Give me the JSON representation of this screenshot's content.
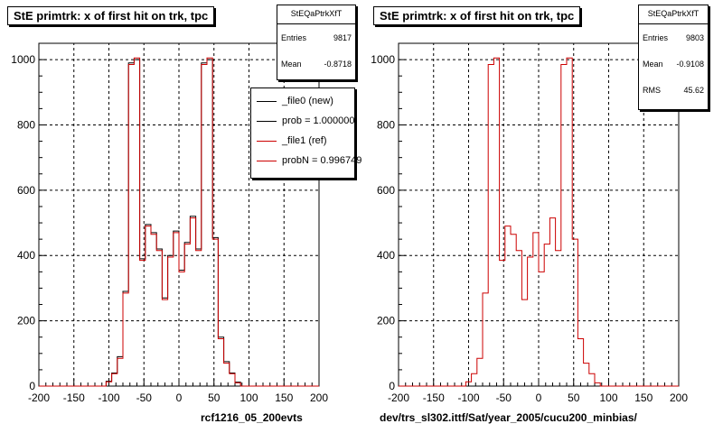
{
  "chart_data": [
    {
      "type": "histogram",
      "title": "StE primtrk: x of first hit on trk, tpc",
      "xlabel": "rcf1216_05_200evts",
      "ylabel": "",
      "xlim": [
        -200,
        200
      ],
      "ylim": [
        0,
        1050
      ],
      "grid": true,
      "xticks": [
        -200,
        -150,
        -100,
        -50,
        0,
        50,
        100,
        150,
        200
      ],
      "yticks": [
        0,
        200,
        400,
        600,
        800,
        1000
      ],
      "bin_width": 8,
      "bin_edges_start": -200,
      "series": [
        {
          "name": "_file0 (new)",
          "color": "#000000",
          "values": [
            0,
            0,
            0,
            0,
            0,
            0,
            0,
            0,
            0,
            0,
            0,
            0,
            15,
            40,
            90,
            290,
            990,
            1000,
            390,
            495,
            470,
            420,
            270,
            400,
            475,
            355,
            440,
            520,
            420,
            990,
            1000,
            455,
            150,
            75,
            40,
            12,
            0,
            0,
            0,
            0,
            0,
            0,
            0,
            0,
            0,
            0,
            0,
            0,
            0,
            0
          ]
        },
        {
          "name": "_file1 (ref)",
          "color": "#cc0000",
          "values": [
            0,
            0,
            0,
            0,
            0,
            0,
            0,
            0,
            0,
            0,
            0,
            0,
            13,
            38,
            85,
            285,
            985,
            1005,
            385,
            490,
            465,
            415,
            265,
            395,
            470,
            350,
            435,
            515,
            415,
            985,
            1005,
            450,
            145,
            70,
            38,
            10,
            0,
            0,
            0,
            0,
            0,
            0,
            0,
            0,
            0,
            0,
            0,
            0,
            0,
            0
          ]
        }
      ],
      "stats": {
        "name": "StEQaPtrkXfT",
        "entries_label": "Entries",
        "entries": "9817",
        "mean_label": "Mean",
        "mean": "-0.8718"
      },
      "legend": [
        {
          "label": "_file0 (new)",
          "color": "#000000"
        },
        {
          "label": "prob = 1.000000",
          "color": "#000000"
        },
        {
          "label": "_file1 (ref)",
          "color": "#cc0000"
        },
        {
          "label": "probN = 0.996749",
          "color": "#cc0000"
        }
      ]
    },
    {
      "type": "histogram",
      "title": "StE primtrk: x of first hit on trk, tpc",
      "xlabel": "dev/trs_sl302.ittf/Sat/year_2005/cucu200_minbias/",
      "ylabel": "",
      "xlim": [
        -200,
        200
      ],
      "ylim": [
        0,
        1050
      ],
      "grid": true,
      "xticks": [
        -200,
        -150,
        -100,
        -50,
        0,
        50,
        100,
        150,
        200
      ],
      "yticks": [
        0,
        200,
        400,
        600,
        800,
        1000
      ],
      "bin_width": 8,
      "bin_edges_start": -200,
      "series": [
        {
          "name": "",
          "color": "#cc0000",
          "values": [
            0,
            0,
            0,
            0,
            0,
            0,
            0,
            0,
            0,
            0,
            0,
            0,
            13,
            38,
            85,
            285,
            985,
            1005,
            385,
            490,
            465,
            415,
            265,
            395,
            470,
            350,
            435,
            515,
            415,
            985,
            1005,
            450,
            145,
            70,
            38,
            10,
            0,
            0,
            0,
            0,
            0,
            0,
            0,
            0,
            0,
            0,
            0,
            0,
            0,
            0
          ]
        }
      ],
      "stats": {
        "name": "StEQaPtrkXfT",
        "entries_label": "Entries",
        "entries": "9803",
        "mean_label": "Mean",
        "mean": "-0.9108",
        "rms_label": "RMS",
        "rms": "45.62"
      }
    }
  ]
}
